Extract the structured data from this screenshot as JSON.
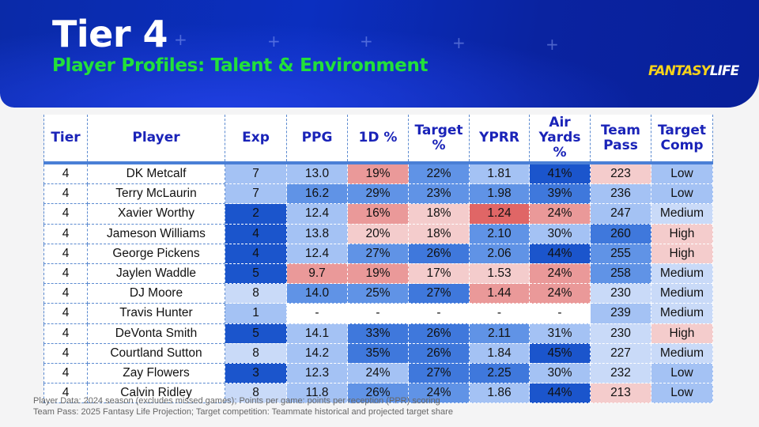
{
  "header": {
    "title": "Tier 4",
    "subtitle": "Player Profiles: Talent & Environment",
    "logo_text": "FANTASYLIFE",
    "logo_parts": [
      "FANTASY",
      "LIFE"
    ]
  },
  "colors": {
    "title": "#ffffff",
    "subtitle": "#22e03a",
    "header_text": "#1a23b8",
    "scale": {
      "B3": "#1b55cc",
      "B2p": "#3f78dc",
      "B2": "#6093e6",
      "B1": "#a4c2f4",
      "B0": "#c9daf8",
      "W": "#ffffff",
      "R0": "#f4cccc",
      "R1": "#ea9999",
      "R2": "#e06666"
    }
  },
  "table": {
    "columns": [
      "Tier",
      "Player",
      "Exp",
      "PPG",
      "1D %",
      "Target %",
      "YPRR",
      "Air Yards %",
      "Team Pass",
      "Target Comp"
    ],
    "rows": [
      {
        "tier": "4",
        "player": "DK Metcalf",
        "values": [
          "7",
          "13.0",
          "19%",
          "22%",
          "1.81",
          "41%",
          "223",
          "Low"
        ],
        "colors": [
          "B1",
          "B1",
          "R1",
          "B2",
          "B1",
          "B3",
          "R0",
          "B1"
        ]
      },
      {
        "tier": "4",
        "player": "Terry McLaurin",
        "values": [
          "7",
          "16.2",
          "29%",
          "23%",
          "1.98",
          "39%",
          "236",
          "Low"
        ],
        "colors": [
          "B1",
          "B2",
          "B2",
          "B2",
          "B2",
          "B2p",
          "B1",
          "B1"
        ]
      },
      {
        "tier": "4",
        "player": "Xavier Worthy",
        "values": [
          "2",
          "12.4",
          "16%",
          "18%",
          "1.24",
          "24%",
          "247",
          "Medium"
        ],
        "colors": [
          "B3",
          "B1",
          "R1",
          "R0",
          "R2",
          "R1",
          "B1",
          "B0"
        ]
      },
      {
        "tier": "4",
        "player": "Jameson Williams",
        "values": [
          "4",
          "13.8",
          "20%",
          "18%",
          "2.10",
          "30%",
          "260",
          "High"
        ],
        "colors": [
          "B3",
          "B1",
          "R0",
          "R0",
          "B2",
          "B1",
          "B2p",
          "R0"
        ]
      },
      {
        "tier": "4",
        "player": "George Pickens",
        "values": [
          "4",
          "12.4",
          "27%",
          "26%",
          "2.06",
          "44%",
          "255",
          "High"
        ],
        "colors": [
          "B3",
          "B1",
          "B2",
          "B2p",
          "B2",
          "B3",
          "B2",
          "R0"
        ]
      },
      {
        "tier": "4",
        "player": "Jaylen Waddle",
        "values": [
          "5",
          "9.7",
          "19%",
          "17%",
          "1.53",
          "24%",
          "258",
          "Medium"
        ],
        "colors": [
          "B3",
          "R1",
          "R1",
          "R0",
          "R0",
          "R1",
          "B2",
          "B0"
        ]
      },
      {
        "tier": "4",
        "player": "DJ Moore",
        "values": [
          "8",
          "14.0",
          "25%",
          "27%",
          "1.44",
          "24%",
          "230",
          "Medium"
        ],
        "colors": [
          "B0",
          "B2",
          "B2",
          "B2p",
          "R1",
          "R1",
          "B0",
          "B0"
        ]
      },
      {
        "tier": "4",
        "player": "Travis Hunter",
        "values": [
          "1",
          "-",
          "-",
          "-",
          "-",
          "-",
          "239",
          "Medium"
        ],
        "colors": [
          "B1",
          "W",
          "W",
          "W",
          "W",
          "W",
          "B1",
          "B0"
        ]
      },
      {
        "tier": "4",
        "player": "DeVonta Smith",
        "values": [
          "5",
          "14.1",
          "33%",
          "26%",
          "2.11",
          "31%",
          "230",
          "High"
        ],
        "colors": [
          "B3",
          "B1",
          "B2p",
          "B2p",
          "B2",
          "B1",
          "B0",
          "R0"
        ]
      },
      {
        "tier": "4",
        "player": "Courtland Sutton",
        "values": [
          "8",
          "14.2",
          "35%",
          "26%",
          "1.84",
          "45%",
          "227",
          "Medium"
        ],
        "colors": [
          "B0",
          "B1",
          "B2p",
          "B2p",
          "B1",
          "B3",
          "B0",
          "B0"
        ]
      },
      {
        "tier": "4",
        "player": "Zay Flowers",
        "values": [
          "3",
          "12.3",
          "24%",
          "27%",
          "2.25",
          "30%",
          "232",
          "Low"
        ],
        "colors": [
          "B3",
          "B1",
          "B1",
          "B2p",
          "B2p",
          "B1",
          "B0",
          "B1"
        ]
      },
      {
        "tier": "4",
        "player": "Calvin Ridley",
        "values": [
          "8",
          "11.8",
          "26%",
          "24%",
          "1.86",
          "44%",
          "213",
          "Low"
        ],
        "colors": [
          "B0",
          "B1",
          "B2",
          "B2",
          "B1",
          "B3",
          "R0",
          "B1"
        ]
      }
    ]
  },
  "footnotes": [
    "Player Data: 2024 season (excludes missed games); Points per game: points per reception (PPR) scoring",
    "Team Pass: 2025 Fantasy Life Projection; Target competition: Teammate historical and projected target share"
  ]
}
